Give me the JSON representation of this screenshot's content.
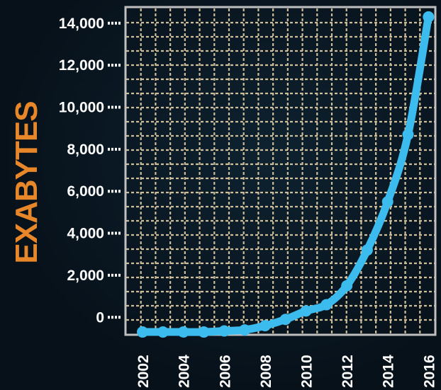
{
  "chart_data": {
    "type": "line",
    "title": "",
    "xlabel": "",
    "ylabel": "EXABYTES",
    "x_ticks": [
      "2002",
      "2004",
      "2006",
      "2008",
      "2010",
      "2012",
      "2014",
      "2016"
    ],
    "y_ticks": [
      "0",
      "2,000",
      "4,000",
      "6,000",
      "8,000",
      "10,000",
      "12,000",
      "14,000"
    ],
    "xlim": [
      2001.2,
      2016.3
    ],
    "ylim": [
      -800,
      14700
    ],
    "grid": true,
    "series": [
      {
        "x": [
          2002,
          2003,
          2004,
          2005,
          2006,
          2007,
          2008,
          2009,
          2010,
          2011,
          2012,
          2013,
          2014,
          2015,
          2016
        ],
        "y": [
          -700,
          -700,
          -700,
          -700,
          -650,
          -600,
          -400,
          -100,
          300,
          600,
          1500,
          3200,
          5500,
          8700,
          14300
        ]
      }
    ],
    "colors": {
      "line": "#3cbbee",
      "grid": "#cdbd98",
      "ylabel": "#e8872a",
      "frame": "#bfbfbf",
      "text": "#ffffff"
    }
  }
}
